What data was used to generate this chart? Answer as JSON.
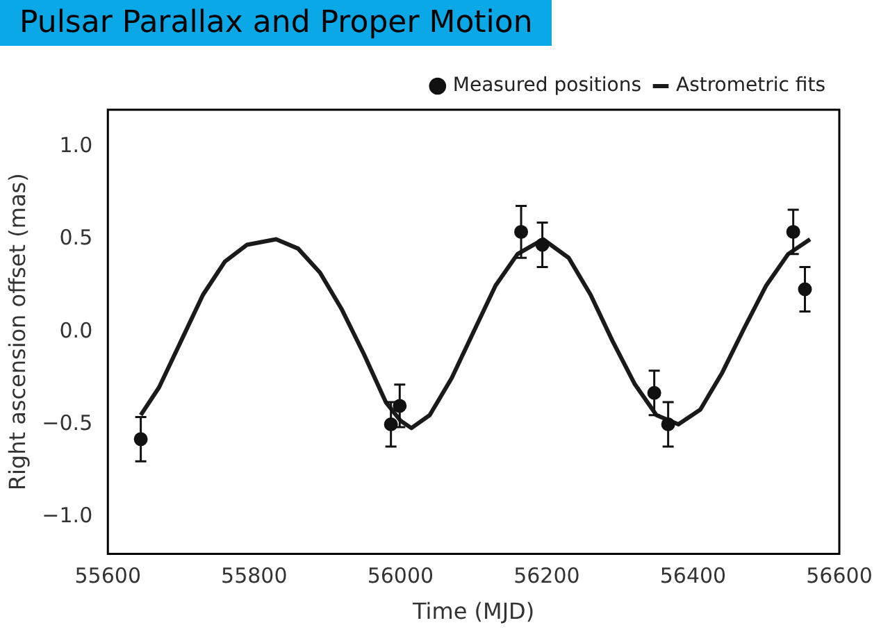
{
  "chart_data": {
    "type": "scatter",
    "title": "Pulsar Parallax and Proper Motion",
    "xlabel": "Time (MJD)",
    "ylabel": "Right ascension offset (mas)",
    "xlim": [
      55600,
      56600
    ],
    "xticks": [
      55600,
      55800,
      56000,
      56200,
      56400,
      56600
    ],
    "ylim": [
      -1.2,
      1.2
    ],
    "yticks": [
      {
        "value": -1,
        "label": "−1.0"
      },
      {
        "value": -0.5,
        "label": "−0.5"
      },
      {
        "value": 0,
        "label": "0.0"
      },
      {
        "value": 0.5,
        "label": "0.5"
      },
      {
        "value": 1,
        "label": "1.0"
      }
    ],
    "legend": "top right",
    "grid": false,
    "series": [
      {
        "name": "Astrometric fits",
        "type": "line",
        "color": "#1a1a1a",
        "marker": "none",
        "x": [
          55645,
          55670,
          55700,
          55730,
          55760,
          55790,
          55830,
          55860,
          55890,
          55920,
          55950,
          55980,
          56000,
          56015,
          56040,
          56070,
          56100,
          56130,
          56160,
          56195,
          56230,
          56260,
          56290,
          56320,
          56350,
          56380,
          56410,
          56440,
          56470,
          56500,
          56530,
          56560
        ],
        "values": [
          -0.45,
          -0.3,
          -0.05,
          0.2,
          0.38,
          0.47,
          0.5,
          0.45,
          0.32,
          0.12,
          -0.12,
          -0.38,
          -0.48,
          -0.52,
          -0.45,
          -0.25,
          0.0,
          0.25,
          0.42,
          0.5,
          0.4,
          0.2,
          -0.05,
          -0.28,
          -0.45,
          -0.5,
          -0.42,
          -0.22,
          0.02,
          0.25,
          0.42,
          0.5
        ]
      },
      {
        "name": "Measured positions",
        "type": "scatter",
        "color": "#111111",
        "marker": "circle",
        "x": [
          55645,
          55987,
          55999,
          56165,
          56194,
          56347,
          56366,
          56537,
          56553
        ],
        "values": [
          -0.58,
          -0.5,
          -0.4,
          0.54,
          0.47,
          -0.33,
          -0.5,
          0.54,
          0.23
        ],
        "errors": [
          0.12,
          0.12,
          0.115,
          0.14,
          0.12,
          0.12,
          0.12,
          0.12,
          0.12
        ]
      }
    ]
  }
}
